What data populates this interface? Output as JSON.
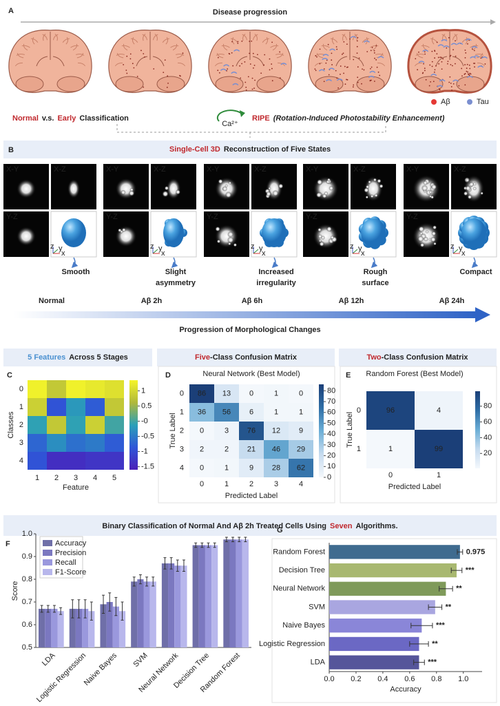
{
  "panel_a": {
    "label": "A",
    "title": "Disease progression",
    "legend": [
      {
        "name": "Aβ",
        "color": "#e53935"
      },
      {
        "name": "Tau",
        "color": "#7b8fd0"
      }
    ],
    "left_text": [
      {
        "text": "Normal",
        "color": "#c0282d"
      },
      {
        "text": "v.s.",
        "color": "#222222"
      },
      {
        "text": "Early",
        "color": "#c0282d"
      },
      {
        "text": "Classification",
        "color": "#222222"
      }
    ],
    "ion": "Ca²⁺",
    "right_text": [
      {
        "text": "RIPE",
        "color": "#c0282d"
      },
      {
        "text": "(Rotation-Induced Photostability Enhancement)",
        "color": "#222222",
        "italic": true
      }
    ]
  },
  "panel_b": {
    "label": "B",
    "title": [
      {
        "text": "Single-Cell 3D",
        "color": "#c0282d"
      },
      {
        "text": "Reconstruction of Five States",
        "color": "#222222"
      }
    ],
    "view_labels": [
      "X-Y",
      "X-Z",
      "Y-Z"
    ],
    "axes": [
      "z",
      "y",
      "x"
    ],
    "states": [
      {
        "name": "Normal",
        "description": [
          "Smooth"
        ]
      },
      {
        "name": "Aβ 2h",
        "description": [
          "Slight",
          "asymmetry"
        ]
      },
      {
        "name": "Aβ 6h",
        "description": [
          "Increased",
          "irregularity"
        ]
      },
      {
        "name": "Aβ 12h",
        "description": [
          "Rough",
          "surface"
        ]
      },
      {
        "name": "Aβ 24h",
        "description": [
          "Compact"
        ]
      }
    ],
    "progression": "Progression of Morphological Changes"
  },
  "fg_title": [
    {
      "text": "Binary Classification of Normal And Aβ 2h Treated Cells Using",
      "color": "#222222"
    },
    {
      "text": "Seven",
      "color": "#c0282d"
    },
    {
      "text": "Algorithms.",
      "color": "#222222"
    }
  ],
  "chart_data": [
    {
      "type": "heatmap",
      "label": "C",
      "title": [
        {
          "text": "5 Features",
          "color": "#4a90d0"
        },
        {
          "text": "Across 5 Stages",
          "color": "#222222"
        }
      ],
      "xlabel": "Feature",
      "ylabel": "Classes",
      "x": [
        1,
        2,
        3,
        4,
        5
      ],
      "y": [
        0,
        1,
        2,
        3,
        4
      ],
      "values": [
        [
          1.3,
          0.8,
          1.3,
          1.2,
          1.1
        ],
        [
          0.9,
          -0.9,
          -0.2,
          -0.8,
          0.8
        ],
        [
          -0.1,
          0.8,
          -0.1,
          0.9,
          0.0
        ],
        [
          -0.7,
          -0.3,
          -0.6,
          -0.5,
          -0.8
        ],
        [
          -0.9,
          -1.4,
          -1.4,
          -1.3,
          -1.3
        ]
      ],
      "clim": [
        -1.6,
        1.35
      ],
      "cticks": [
        1,
        0.5,
        {
          "value": 0,
          "label": "-0"
        },
        -0.5,
        -1,
        -1.5
      ],
      "colormap": [
        "#4b1fb8",
        "#2f56d8",
        "#2aa0b8",
        "#b0b83a",
        "#f5f52a"
      ]
    },
    {
      "type": "confusion",
      "label": "D",
      "title": [
        {
          "text": "Five",
          "color": "#c0282d"
        },
        {
          "text": "-Class Confusion Matrix",
          "color": "#222222"
        }
      ],
      "subtitle": "Neural Network (Best Model)",
      "xlabel": "Predicted Label",
      "ylabel": "True Label",
      "categories": [
        0,
        1,
        2,
        3,
        4
      ],
      "values": [
        [
          86,
          13,
          0,
          1,
          0
        ],
        [
          36,
          56,
          6,
          1,
          1
        ],
        [
          0,
          3,
          76,
          12,
          9
        ],
        [
          2,
          2,
          21,
          46,
          29
        ],
        [
          0,
          1,
          9,
          28,
          62
        ]
      ],
      "clim": [
        0,
        86
      ],
      "cticks": [
        0,
        10,
        20,
        30,
        40,
        50,
        60,
        70,
        80
      ],
      "colormap": [
        "#f4f8fc",
        "#c6dbef",
        "#6baed6",
        "#2f6ea6",
        "#1b3f78"
      ]
    },
    {
      "type": "confusion",
      "label": "E",
      "title": [
        {
          "text": "Two",
          "color": "#c0282d"
        },
        {
          "text": "-Class Confusion Matrix",
          "color": "#222222"
        }
      ],
      "subtitle": "Random Forest (Best Model)",
      "xlabel": "Predicted Label",
      "ylabel": "True Label",
      "categories": [
        0,
        1
      ],
      "values": [
        [
          96,
          4
        ],
        [
          1,
          99
        ]
      ],
      "clim": [
        1,
        99
      ],
      "cticks": [
        20,
        40,
        60,
        80
      ],
      "colormap": [
        "#f4f8fc",
        "#c6dbef",
        "#6baed6",
        "#2f6ea6",
        "#1b3f78"
      ]
    },
    {
      "type": "bar",
      "label": "F",
      "ylabel": "Score",
      "categories": [
        "LDA",
        "Logistic Regression",
        "Naive Bayes",
        "SVM",
        "Neural Network",
        "Decision Tree",
        "Random Forest"
      ],
      "series": [
        {
          "name": "Accuracy",
          "color": "#6f6fa8",
          "values": [
            0.67,
            0.67,
            0.69,
            0.79,
            0.87,
            0.95,
            0.975
          ],
          "errors": [
            0.015,
            0.04,
            0.04,
            0.02,
            0.025,
            0.01,
            0.01
          ]
        },
        {
          "name": "Precision",
          "color": "#7b78c0",
          "values": [
            0.67,
            0.67,
            0.7,
            0.8,
            0.87,
            0.95,
            0.975
          ],
          "errors": [
            0.015,
            0.04,
            0.04,
            0.02,
            0.025,
            0.01,
            0.01
          ]
        },
        {
          "name": "Recall",
          "color": "#9a98dd",
          "values": [
            0.67,
            0.67,
            0.68,
            0.79,
            0.86,
            0.95,
            0.975
          ],
          "errors": [
            0.015,
            0.04,
            0.04,
            0.02,
            0.025,
            0.01,
            0.01
          ]
        },
        {
          "name": "F1-Score",
          "color": "#b8b7ec",
          "values": [
            0.66,
            0.66,
            0.66,
            0.79,
            0.86,
            0.95,
            0.975
          ],
          "errors": [
            0.015,
            0.04,
            0.04,
            0.02,
            0.025,
            0.01,
            0.01
          ]
        }
      ],
      "ylim": [
        0.5,
        1.0
      ],
      "yticks": [
        0.5,
        0.6,
        0.7,
        0.8,
        0.9,
        {
          "value": 1.0,
          "label": "1.0"
        }
      ]
    },
    {
      "type": "hbar",
      "label": "G",
      "xlabel": "Accuracy",
      "categories": [
        "Random Forest",
        "Decision Tree",
        "Neural Network",
        "SVM",
        "Naive Bayes",
        "Logistic Regression",
        "LDA"
      ],
      "values": [
        0.975,
        0.95,
        0.87,
        0.79,
        0.69,
        0.67,
        0.67
      ],
      "errors": [
        0.02,
        0.04,
        0.05,
        0.05,
        0.08,
        0.07,
        0.04
      ],
      "colors": [
        "#3f6b8f",
        "#a8b870",
        "#7f9a5a",
        "#a9a6e0",
        "#8a86d8",
        "#6b68c4",
        "#55559a"
      ],
      "annotations": [
        null,
        "***",
        "**",
        "**",
        "***",
        "**",
        "***"
      ],
      "xlim": [
        0,
        1.14
      ],
      "xticks": [
        {
          "value": 0,
          "label": "0.0"
        },
        0.2,
        0.4,
        0.6,
        0.8,
        {
          "value": 1.0,
          "label": "1.0"
        }
      ]
    }
  ]
}
